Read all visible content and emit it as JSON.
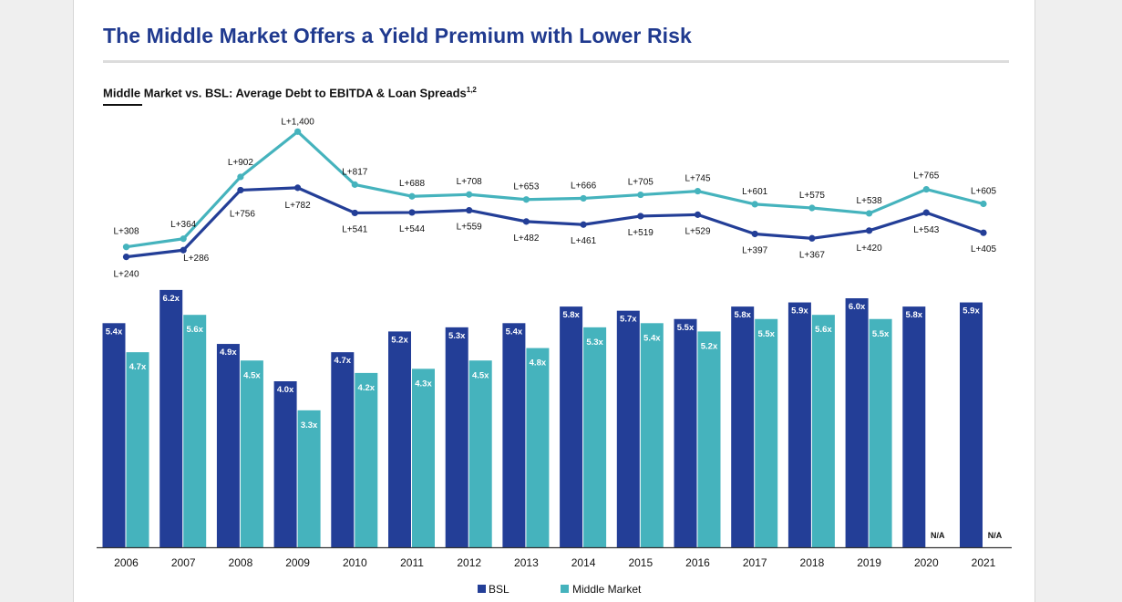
{
  "page": {
    "title": "The Middle Market Offers a Yield Premium with Lower Risk",
    "subtitle": "Middle Market vs. BSL: Average Debt to EBITDA & Loan Spreads",
    "subtitle_footnote": "1,2"
  },
  "colors": {
    "bsl": "#233e97",
    "mm": "#45b3bd",
    "title": "#203a8f"
  },
  "chart_data": [
    {
      "type": "line",
      "title": "Loan Spreads",
      "x": [
        "2006",
        "2007",
        "2008",
        "2009",
        "2010",
        "2011",
        "2012",
        "2013",
        "2014",
        "2015",
        "2016",
        "2017",
        "2018",
        "2019",
        "2020",
        "2021"
      ],
      "series": [
        {
          "name": "Middle Market",
          "values": [
            308,
            364,
            902,
            1400,
            817,
            688,
            708,
            653,
            666,
            705,
            745,
            601,
            575,
            538,
            765,
            605
          ],
          "labels": [
            "L+308",
            "L+364",
            "L+902",
            "L+1,400",
            "L+817",
            "L+688",
            "L+708",
            "L+653",
            "L+666",
            "L+705",
            "L+745",
            "L+601",
            "L+575",
            "L+538",
            "L+765",
            "L+605"
          ]
        },
        {
          "name": "BSL",
          "values": [
            240,
            286,
            756,
            782,
            541,
            544,
            559,
            482,
            461,
            519,
            529,
            397,
            367,
            420,
            543,
            405
          ],
          "labels": [
            "L+240",
            "L+286",
            "L+756",
            "L+782",
            "L+541",
            "L+544",
            "L+559",
            "L+482",
            "L+461",
            "L+519",
            "L+529",
            "L+397",
            "L+367",
            "L+420",
            "L+543",
            "L+405"
          ]
        }
      ]
    },
    {
      "type": "bar",
      "title": "Average Debt to EBITDA",
      "categories": [
        "2006",
        "2007",
        "2008",
        "2009",
        "2010",
        "2011",
        "2012",
        "2013",
        "2014",
        "2015",
        "2016",
        "2017",
        "2018",
        "2019",
        "2020",
        "2021"
      ],
      "series": [
        {
          "name": "BSL",
          "values": [
            5.4,
            6.2,
            4.9,
            4.0,
            4.7,
            5.2,
            5.3,
            5.4,
            5.8,
            5.7,
            5.5,
            5.8,
            5.9,
            6.0,
            5.8,
            5.9
          ],
          "labels": [
            "5.4x",
            "6.2x",
            "4.9x",
            "4.0x",
            "4.7x",
            "5.2x",
            "5.3x",
            "5.4x",
            "5.8x",
            "5.7x",
            "5.5x",
            "5.8x",
            "5.9x",
            "6.0x",
            "5.8x",
            "5.9x"
          ]
        },
        {
          "name": "Middle Market",
          "values": [
            4.7,
            5.6,
            4.5,
            3.3,
            4.2,
            4.3,
            4.5,
            4.8,
            5.3,
            5.4,
            5.2,
            5.5,
            5.6,
            5.5,
            null,
            null
          ],
          "labels": [
            "4.7x",
            "5.6x",
            "4.5x",
            "3.3x",
            "4.2x",
            "4.3x",
            "4.5x",
            "4.8x",
            "5.3x",
            "5.4x",
            "5.2x",
            "5.5x",
            "5.6x",
            "5.5x",
            "N/A",
            "N/A"
          ]
        }
      ],
      "ylim": [
        0,
        6.8
      ],
      "legend": [
        "BSL",
        "Middle Market"
      ],
      "legend_position": "bottom-center"
    }
  ]
}
